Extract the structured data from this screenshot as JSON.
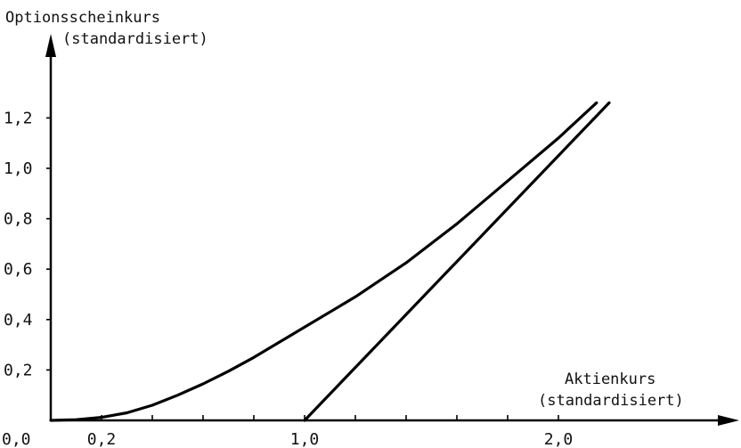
{
  "chart_data": {
    "type": "line",
    "ylabel_line1": "Optionsscheinkurs",
    "ylabel_line2": "(standardisiert)",
    "xlabel_line1": "Aktienkurs",
    "xlabel_line2": "(standardisiert)",
    "x_ticks": [
      {
        "value": 0.0,
        "label": "0,0"
      },
      {
        "value": 0.2,
        "label": "0,2"
      },
      {
        "value": 1.0,
        "label": "1,0"
      },
      {
        "value": 2.0,
        "label": "2,0"
      }
    ],
    "x_minor_ticks": [
      0.4,
      0.6,
      0.8,
      1.2,
      1.4,
      1.6,
      1.8
    ],
    "y_ticks": [
      {
        "value": 0.2,
        "label": "0,2"
      },
      {
        "value": 0.4,
        "label": "0,4"
      },
      {
        "value": 0.6,
        "label": "0,6"
      },
      {
        "value": 0.8,
        "label": "0,8"
      },
      {
        "value": 1.0,
        "label": "1,0"
      },
      {
        "value": 1.2,
        "label": "1,2"
      }
    ],
    "xlim": [
      0,
      2.6
    ],
    "ylim": [
      0,
      1.45
    ],
    "grid": false,
    "series": [
      {
        "x": [
          0.0,
          0.1,
          0.2,
          0.3,
          0.4,
          0.5,
          0.6,
          0.7,
          0.8,
          0.9,
          1.0,
          1.2,
          1.4,
          1.6,
          1.8,
          2.0,
          2.15
        ],
        "y": [
          0.0,
          0.003,
          0.012,
          0.03,
          0.06,
          0.1,
          0.145,
          0.195,
          0.25,
          0.31,
          0.37,
          0.49,
          0.625,
          0.78,
          0.95,
          1.12,
          1.26
        ]
      },
      {
        "x": [
          1.0,
          2.2
        ],
        "y": [
          0.0,
          1.26
        ]
      }
    ]
  }
}
